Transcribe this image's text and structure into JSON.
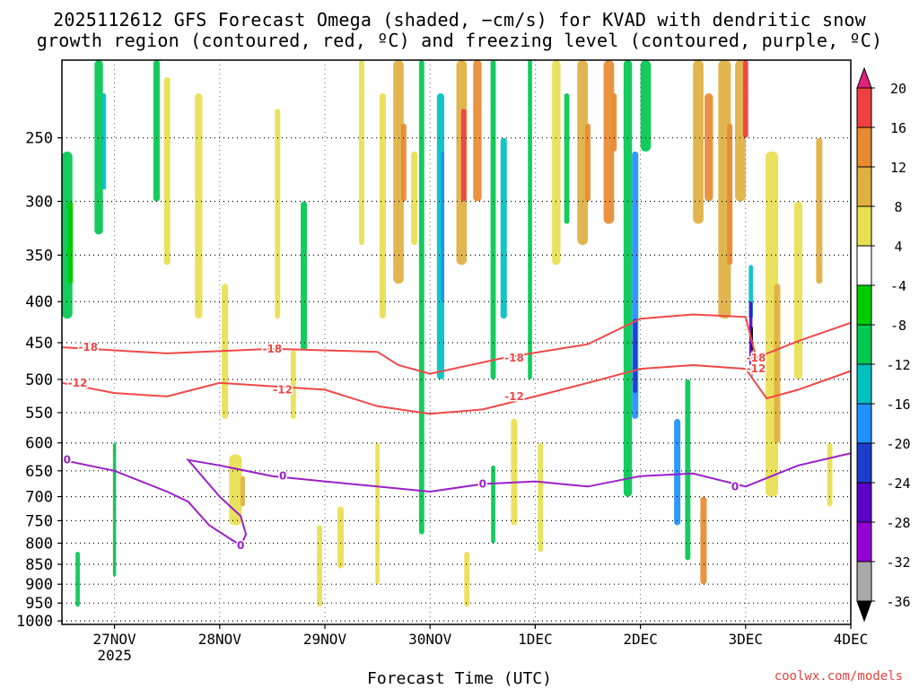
{
  "title_line1": "2025112612 GFS Forecast Omega (shaded, −cm/s) for KVAD with dendritic snow",
  "title_line2": "growth region (contoured, red, ºC) and freezing level (contoured, purple, ºC)",
  "credit": "coolwx.com/models",
  "chart_data": {
    "type": "heatmap",
    "title": "2025112612 GFS Forecast Omega (shaded, −cm/s) for KVAD with dendritic snow growth region (contoured, red, ºC) and freezing level (contoured, purple, ºC)",
    "xlabel": "Forecast Time (UTC)",
    "ylabel": "",
    "x_ticks": [
      {
        "t": 0.5,
        "label": "27NOV",
        "sublabel": "2025"
      },
      {
        "t": 1.5,
        "label": "28NOV"
      },
      {
        "t": 2.5,
        "label": "29NOV"
      },
      {
        "t": 3.5,
        "label": "30NOV"
      },
      {
        "t": 4.5,
        "label": "1DEC"
      },
      {
        "t": 5.5,
        "label": "2DEC"
      },
      {
        "t": 6.5,
        "label": "3DEC"
      },
      {
        "t": 7.5,
        "label": "4DEC"
      }
    ],
    "x_range_days": [
      0,
      7.5
    ],
    "y_ticks_hpa": [
      250,
      300,
      350,
      400,
      450,
      500,
      550,
      600,
      650,
      700,
      750,
      800,
      850,
      900,
      950,
      1000
    ],
    "y_range_hpa": [
      200,
      1010
    ],
    "y_scale": "log-pressure",
    "grid": true,
    "colorbar": {
      "levels": [
        -36,
        -32,
        -28,
        -24,
        -20,
        -16,
        -12,
        -8,
        -4,
        4,
        8,
        12,
        16,
        20
      ],
      "colors": [
        "#000000",
        "#a9a9a9",
        "#9400d3",
        "#5a00c8",
        "#1c3ccc",
        "#1e90ff",
        "#00c0c0",
        "#00c850",
        "#00cc00",
        "#ffffff",
        "#e8e050",
        "#e0b040",
        "#e88a30",
        "#f04040",
        "#e0207a"
      ],
      "orientation": "vertical",
      "placement": "right"
    },
    "red_contours": [
      {
        "label": "-18",
        "points": [
          [
            0.0,
            456
          ],
          [
            1.0,
            464
          ],
          [
            2.0,
            458
          ],
          [
            3.0,
            462
          ],
          [
            3.2,
            480
          ],
          [
            3.5,
            492
          ],
          [
            4.2,
            470
          ],
          [
            5.0,
            452
          ],
          [
            5.5,
            420
          ],
          [
            6.0,
            415
          ],
          [
            6.5,
            418
          ],
          [
            6.6,
            470
          ],
          [
            7.0,
            448
          ],
          [
            7.5,
            425
          ]
        ]
      },
      {
        "label": "-12",
        "points": [
          [
            0.0,
            505
          ],
          [
            0.5,
            520
          ],
          [
            1.0,
            525
          ],
          [
            1.5,
            505
          ],
          [
            2.5,
            515
          ],
          [
            3.0,
            540
          ],
          [
            3.5,
            552
          ],
          [
            4.0,
            545
          ],
          [
            4.5,
            525
          ],
          [
            5.0,
            505
          ],
          [
            5.5,
            485
          ],
          [
            6.0,
            480
          ],
          [
            6.5,
            485
          ],
          [
            6.7,
            528
          ],
          [
            7.0,
            515
          ],
          [
            7.5,
            488
          ]
        ]
      }
    ],
    "purple_contours": [
      {
        "label": "0",
        "points": [
          [
            0.0,
            630
          ],
          [
            0.5,
            650
          ],
          [
            1.0,
            690
          ],
          [
            1.2,
            710
          ],
          [
            1.4,
            760
          ],
          [
            1.6,
            790
          ],
          [
            1.7,
            805
          ],
          [
            1.75,
            780
          ],
          [
            1.7,
            740
          ],
          [
            1.5,
            700
          ],
          [
            1.2,
            630
          ],
          [
            1.5,
            640
          ],
          [
            2.0,
            660
          ],
          [
            2.5,
            670
          ],
          [
            3.0,
            680
          ],
          [
            3.5,
            690
          ],
          [
            4.0,
            675
          ],
          [
            4.5,
            670
          ],
          [
            5.0,
            680
          ],
          [
            5.5,
            660
          ],
          [
            6.0,
            655
          ],
          [
            6.5,
            680
          ],
          [
            7.0,
            640
          ],
          [
            7.5,
            618
          ]
        ]
      }
    ],
    "omega_cells_legend": "shaded omega values in −cm/s",
    "terrain_color": "#a0522d"
  },
  "x_title": "Forecast Time (UTC)"
}
